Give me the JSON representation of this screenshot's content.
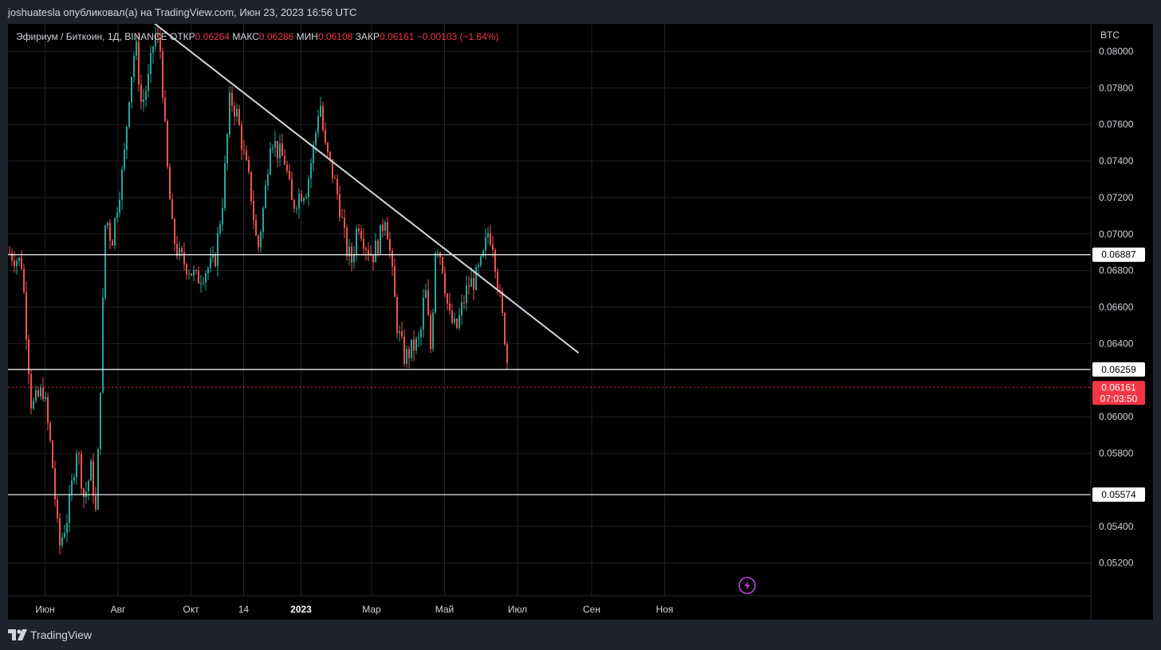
{
  "header": {
    "publish_text": "joshuatesla опубликовал(а) на TradingView.com, Июн 23, 2023 16:56 UTC"
  },
  "legend": {
    "symbol": "Эфириум / Биткоин, 1Д, BINANCE",
    "open_label": "ОТКР",
    "open_value": "0.06264",
    "high_label": "МАКС",
    "high_value": "0.06286",
    "low_label": "МИН",
    "low_value": "0.06108",
    "close_label": "ЗАКР",
    "close_value": "0.06161",
    "change": "−0.00103 (−1.64%)"
  },
  "colors": {
    "up": "#26a69a",
    "down": "#ef5350",
    "background": "#000000",
    "grid": "#1f2227",
    "hline": "#ffffff",
    "trendline": "#d1d4dc",
    "price_label": "#f23645",
    "lightning": "#c042e0"
  },
  "footer": {
    "logo_text": "TradingView",
    "logo_icon": "tradingview-logo-icon"
  },
  "chart_data": {
    "type": "candlestick",
    "currency_label": "BTC",
    "y_ticks": [
      "0.08000",
      "0.07800",
      "0.07600",
      "0.07400",
      "0.07200",
      "0.07000",
      "0.06800",
      "0.06600",
      "0.06400",
      "0.06000",
      "0.05800",
      "0.05400",
      "0.05200"
    ],
    "ylim": [
      0.0502,
      0.0815
    ],
    "x_labels": [
      "Июн",
      "Авг",
      "Окт",
      "14",
      "2023",
      "Мар",
      "Май",
      "Июл",
      "Сен",
      "Ноя"
    ],
    "horizontal_lines": [
      {
        "value": 0.06887,
        "label": "0.06887"
      },
      {
        "value": 0.06259,
        "label": "0.06259"
      },
      {
        "value": 0.05574,
        "label": "0.05574"
      }
    ],
    "last_price": {
      "value": 0.06161,
      "label": "0.06161",
      "countdown": "07:03:50"
    },
    "trendline": {
      "from": {
        "date": "2022-08-30",
        "value": 0.0816
      },
      "to": {
        "date": "2023-08-21",
        "value": 0.0635
      }
    },
    "price_path": [
      {
        "date": "2022-05-01",
        "value": 0.069
      },
      {
        "date": "2022-05-12",
        "value": 0.0684
      },
      {
        "date": "2022-05-20",
        "value": 0.0605
      },
      {
        "date": "2022-05-30",
        "value": 0.0615
      },
      {
        "date": "2022-06-06",
        "value": 0.0578
      },
      {
        "date": "2022-06-12",
        "value": 0.0528
      },
      {
        "date": "2022-06-20",
        "value": 0.0548
      },
      {
        "date": "2022-06-27",
        "value": 0.0585
      },
      {
        "date": "2022-07-03",
        "value": 0.0555
      },
      {
        "date": "2022-07-09",
        "value": 0.0572
      },
      {
        "date": "2022-07-13",
        "value": 0.0545
      },
      {
        "date": "2022-07-17",
        "value": 0.0625
      },
      {
        "date": "2022-07-21",
        "value": 0.0712
      },
      {
        "date": "2022-07-26",
        "value": 0.0695
      },
      {
        "date": "2022-07-31",
        "value": 0.0718
      },
      {
        "date": "2022-08-05",
        "value": 0.0738
      },
      {
        "date": "2022-08-10",
        "value": 0.078
      },
      {
        "date": "2022-08-15",
        "value": 0.0805
      },
      {
        "date": "2022-08-20",
        "value": 0.077
      },
      {
        "date": "2022-08-26",
        "value": 0.0785
      },
      {
        "date": "2022-08-31",
        "value": 0.081
      },
      {
        "date": "2022-09-05",
        "value": 0.08
      },
      {
        "date": "2022-09-10",
        "value": 0.074
      },
      {
        "date": "2022-09-15",
        "value": 0.07
      },
      {
        "date": "2022-09-20",
        "value": 0.0688
      },
      {
        "date": "2022-09-28",
        "value": 0.0682
      },
      {
        "date": "2022-10-05",
        "value": 0.0675
      },
      {
        "date": "2022-10-12",
        "value": 0.068
      },
      {
        "date": "2022-10-20",
        "value": 0.0684
      },
      {
        "date": "2022-10-27",
        "value": 0.072
      },
      {
        "date": "2022-11-02",
        "value": 0.0775
      },
      {
        "date": "2022-11-08",
        "value": 0.0765
      },
      {
        "date": "2022-11-13",
        "value": 0.0745
      },
      {
        "date": "2022-11-19",
        "value": 0.0725
      },
      {
        "date": "2022-11-25",
        "value": 0.069
      },
      {
        "date": "2022-12-01",
        "value": 0.072
      },
      {
        "date": "2022-12-06",
        "value": 0.0755
      },
      {
        "date": "2022-12-12",
        "value": 0.0745
      },
      {
        "date": "2022-12-18",
        "value": 0.074
      },
      {
        "date": "2022-12-24",
        "value": 0.0715
      },
      {
        "date": "2022-12-30",
        "value": 0.0722
      },
      {
        "date": "2023-01-05",
        "value": 0.0725
      },
      {
        "date": "2023-01-12",
        "value": 0.0752
      },
      {
        "date": "2023-01-16",
        "value": 0.0775
      },
      {
        "date": "2023-01-20",
        "value": 0.0748
      },
      {
        "date": "2023-01-26",
        "value": 0.0735
      },
      {
        "date": "2023-02-01",
        "value": 0.0718
      },
      {
        "date": "2023-02-07",
        "value": 0.0692
      },
      {
        "date": "2023-02-12",
        "value": 0.0685
      },
      {
        "date": "2023-02-17",
        "value": 0.0708
      },
      {
        "date": "2023-02-23",
        "value": 0.0695
      },
      {
        "date": "2023-03-01",
        "value": 0.0688
      },
      {
        "date": "2023-03-07",
        "value": 0.0697
      },
      {
        "date": "2023-03-12",
        "value": 0.0712
      },
      {
        "date": "2023-03-16",
        "value": 0.0688
      },
      {
        "date": "2023-03-22",
        "value": 0.0648
      },
      {
        "date": "2023-03-28",
        "value": 0.0632
      },
      {
        "date": "2023-04-04",
        "value": 0.0638
      },
      {
        "date": "2023-04-10",
        "value": 0.0642
      },
      {
        "date": "2023-04-14",
        "value": 0.0672
      },
      {
        "date": "2023-04-19",
        "value": 0.0635
      },
      {
        "date": "2023-04-23",
        "value": 0.0698
      },
      {
        "date": "2023-04-28",
        "value": 0.0686
      },
      {
        "date": "2023-05-04",
        "value": 0.0655
      },
      {
        "date": "2023-05-10",
        "value": 0.0647
      },
      {
        "date": "2023-05-15",
        "value": 0.066
      },
      {
        "date": "2023-05-20",
        "value": 0.0672
      },
      {
        "date": "2023-05-26",
        "value": 0.0675
      },
      {
        "date": "2023-06-01",
        "value": 0.0685
      },
      {
        "date": "2023-06-06",
        "value": 0.0702
      },
      {
        "date": "2023-06-10",
        "value": 0.0695
      },
      {
        "date": "2023-06-14",
        "value": 0.0672
      },
      {
        "date": "2023-06-18",
        "value": 0.0652
      },
      {
        "date": "2023-06-21",
        "value": 0.0638
      },
      {
        "date": "2023-06-23",
        "value": 0.0616
      }
    ]
  }
}
